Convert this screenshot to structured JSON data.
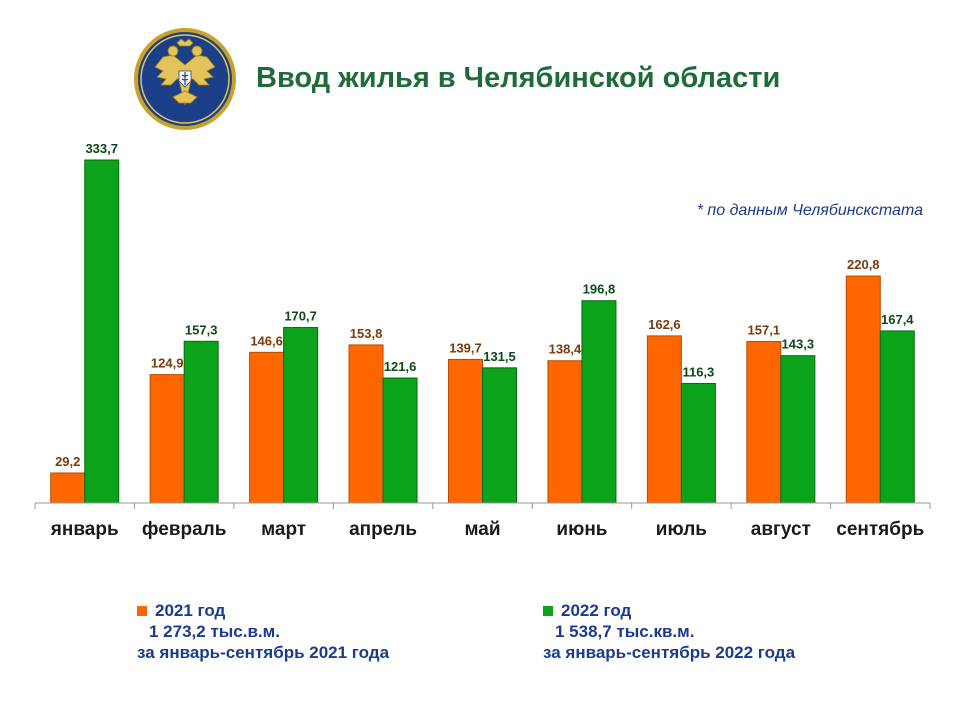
{
  "title": "Ввод жилья в Челябинской области",
  "source_note": "* по данным Челябинскстата",
  "colors": {
    "series_2021": "#ff6600",
    "series_2021_border": "#b84a00",
    "series_2022": "#0aa31a",
    "series_2022_border": "#066b10",
    "value_2021": "#7a3b0a",
    "value_2022": "#0b4a14",
    "category_label": "#1a1a1a",
    "axis": "#9a9a9a",
    "title": "#1f6b3a",
    "legend_text": "#1a3b8f"
  },
  "legend": [
    {
      "series": "2021 год",
      "total": "1 273,2 тыс.в.м.",
      "period": "за январь-сентябрь 2021 года"
    },
    {
      "series": "2022 год",
      "total": "1 538,7 тыс.кв.м.",
      "period": "за январь-сентябрь 2022 года"
    }
  ],
  "chart_data": {
    "type": "bar",
    "categories": [
      "январь",
      "февраль",
      "март",
      "апрель",
      "май",
      "июнь",
      "июль",
      "август",
      "сентябрь"
    ],
    "series": [
      {
        "name": "2021 год",
        "values": [
          29.2,
          124.9,
          146.6,
          153.8,
          139.7,
          138.4,
          162.6,
          157.1,
          220.8
        ],
        "labels": [
          "29,2",
          "124,9",
          "146,6",
          "153,8",
          "139,7",
          "138,4",
          "162,6",
          "157,1",
          "220,8"
        ]
      },
      {
        "name": "2022 год",
        "values": [
          333.7,
          157.3,
          170.7,
          121.6,
          131.5,
          196.8,
          116.3,
          143.3,
          167.4
        ],
        "labels": [
          "333,7",
          "157,3",
          "170,7",
          "121,6",
          "131,5",
          "196,8",
          "116,3",
          "143,3",
          "167,4"
        ]
      }
    ],
    "ylim": [
      0,
      350
    ],
    "grid": false,
    "legend_position": "bottom"
  }
}
